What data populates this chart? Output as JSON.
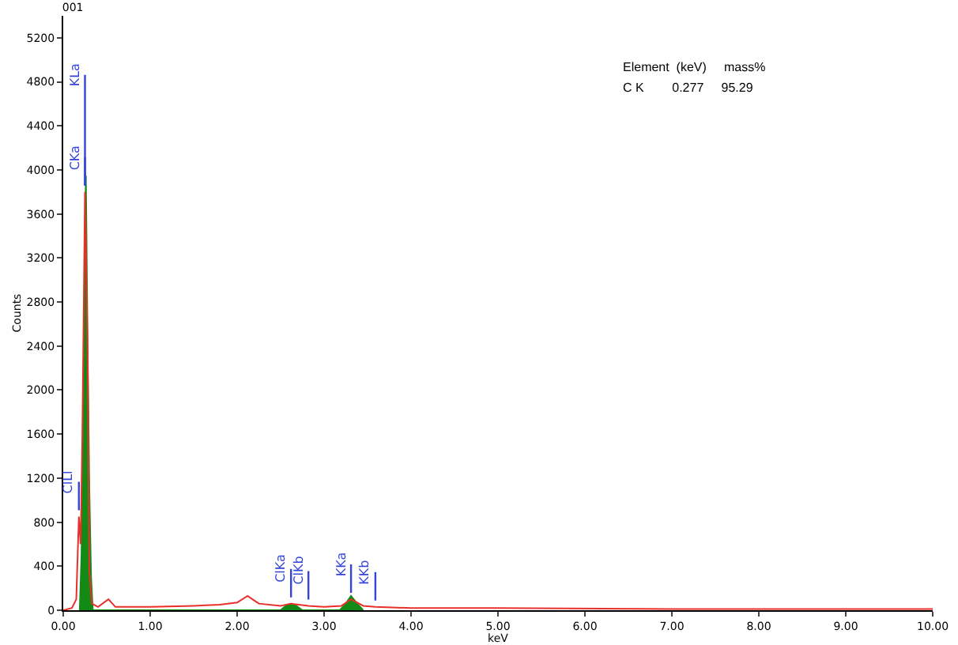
{
  "chart_data": {
    "type": "line",
    "title": "001",
    "ylabel": "Counts",
    "xlabel": "keV",
    "xlim": [
      0,
      10
    ],
    "xticks": [
      {
        "value": 0,
        "label": "0.00"
      },
      {
        "value": 1,
        "label": "1.00"
      },
      {
        "value": 2,
        "label": "2.00"
      },
      {
        "value": 3,
        "label": "3.00"
      },
      {
        "value": 4,
        "label": "4.00"
      },
      {
        "value": 5,
        "label": "5.00"
      },
      {
        "value": 6,
        "label": "6.00"
      },
      {
        "value": 7,
        "label": "7.00"
      },
      {
        "value": 8,
        "label": "8.00"
      },
      {
        "value": 9,
        "label": "9.00"
      },
      {
        "value": 10,
        "label": "10.00"
      }
    ],
    "ylim": [
      0,
      5400
    ],
    "yticks": [
      0,
      400,
      800,
      1200,
      1600,
      2000,
      2400,
      2800,
      3200,
      3600,
      4000,
      4400,
      4800,
      5200
    ],
    "grid": false,
    "legend": false,
    "marker": "none",
    "line_style": "solid",
    "series": [
      {
        "type": "area",
        "color": "#138a16",
        "x": [
          0.19,
          0.21,
          0.23,
          0.26,
          0.28,
          0.3,
          0.32,
          0.34,
          2.5,
          2.56,
          2.62,
          2.68,
          2.75,
          3.18,
          3.25,
          3.31,
          3.38,
          3.45
        ],
        "values": [
          0,
          500,
          1600,
          3950,
          2400,
          1100,
          300,
          0,
          0,
          40,
          60,
          40,
          0,
          0,
          60,
          130,
          60,
          0
        ]
      },
      {
        "color": "#e8302a",
        "x": [
          0,
          0.1,
          0.15,
          0.18,
          0.2,
          0.22,
          0.25,
          0.28,
          0.3,
          0.33,
          0.4,
          0.52,
          0.6,
          1.0,
          1.5,
          1.8,
          2.0,
          2.12,
          2.25,
          2.5,
          2.62,
          2.82,
          3.0,
          3.2,
          3.31,
          3.45,
          3.59,
          4.0,
          5.0,
          7.0,
          10.0
        ],
        "values": [
          0,
          20,
          100,
          850,
          600,
          1600,
          3800,
          2350,
          350,
          60,
          30,
          100,
          30,
          30,
          40,
          50,
          70,
          130,
          60,
          40,
          60,
          40,
          30,
          40,
          100,
          40,
          30,
          20,
          20,
          10,
          10
        ]
      }
    ],
    "annotations": [
      {
        "text": "CKa",
        "x": 0.25,
        "y": 3800
      },
      {
        "text": "KLa",
        "x": 0.25,
        "y": 3800
      },
      {
        "text": "ClLl",
        "x": 0.18,
        "y": 850
      },
      {
        "text": "ClKa",
        "x": 2.62,
        "y": 60
      },
      {
        "text": "ClKb",
        "x": 2.82,
        "y": 40
      },
      {
        "text": "KKa",
        "x": 3.31,
        "y": 100
      },
      {
        "text": "KKb",
        "x": 3.59,
        "y": 30
      },
      "Element  (keV)     mass%",
      "C K        0.277     95.29"
    ]
  }
}
